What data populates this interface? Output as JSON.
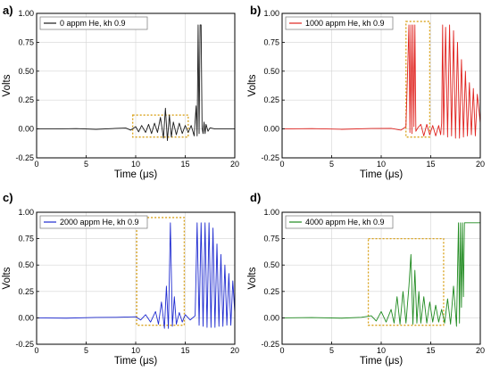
{
  "chart_data": [
    {
      "type": "line",
      "panel_label": "a)",
      "legend": "0 appm He, kh 0.9",
      "color": "#1a1a1a",
      "xlabel": "Time (μs)",
      "ylabel": "Volts",
      "xlim": [
        0,
        20
      ],
      "ylim": [
        -0.25,
        1.0
      ],
      "xticks": [
        "0",
        "5",
        "10",
        "15",
        "20"
      ],
      "yticks": [
        "-0.25",
        "0.00",
        "0.25",
        "0.50",
        "0.75",
        "1.00"
      ],
      "grid": true,
      "legend_position": "top-left",
      "highlight_box": {
        "x": [
          9.7,
          15.3
        ],
        "y": [
          -0.07,
          0.12
        ]
      },
      "x": [
        0,
        2,
        4,
        6,
        8,
        9,
        9.5,
        10,
        10.3,
        10.6,
        11,
        11.3,
        11.6,
        11.9,
        12.2,
        12.5,
        12.8,
        13.0,
        13.2,
        13.4,
        13.6,
        13.8,
        14.1,
        14.4,
        14.7,
        15.0,
        15.3,
        15.6,
        15.9,
        16.1,
        16.2,
        16.3,
        16.4,
        16.5,
        16.6,
        16.7,
        16.8,
        16.9,
        17.0,
        17.1,
        17.3,
        17.5,
        18,
        19,
        20
      ],
      "y": [
        0,
        0,
        0.003,
        -0.003,
        0.005,
        0.008,
        -0.01,
        0.02,
        -0.025,
        0.03,
        -0.03,
        0.04,
        -0.04,
        0.05,
        -0.03,
        0.1,
        -0.08,
        0.18,
        -0.1,
        0.12,
        -0.07,
        0.06,
        -0.05,
        0.05,
        -0.04,
        0.03,
        -0.03,
        0.03,
        -0.06,
        0.2,
        -0.06,
        0.9,
        -0.04,
        0.9,
        0.9,
        0.01,
        -0.04,
        0.06,
        -0.04,
        0.04,
        -0.02,
        0.01,
        0,
        0,
        0
      ]
    },
    {
      "type": "line",
      "panel_label": "b)",
      "legend": "1000 appm He, kh 0.9",
      "color": "#e0231f",
      "xlabel": "Time (μs)",
      "ylabel": "Volts",
      "xlim": [
        0,
        20
      ],
      "ylim": [
        -0.25,
        1.0
      ],
      "xticks": [
        "0",
        "5",
        "10",
        "15",
        "20"
      ],
      "yticks": [
        "-0.25",
        "0.00",
        "0.25",
        "0.50",
        "0.75",
        "1.00"
      ],
      "grid": true,
      "legend_position": "top-left",
      "highlight_box": {
        "x": [
          12.5,
          14.9
        ],
        "y": [
          -0.07,
          0.93
        ]
      },
      "x": [
        0,
        3,
        6,
        9,
        11,
        12,
        12.5,
        12.8,
        12.9,
        13.0,
        13.1,
        13.2,
        13.3,
        13.4,
        13.5,
        13.7,
        14.0,
        14.3,
        14.6,
        14.9,
        15.2,
        15.5,
        15.8,
        16.0,
        16.1,
        16.2,
        16.3,
        16.5,
        16.7,
        16.9,
        17.1,
        17.3,
        17.5,
        17.7,
        17.9,
        18.1,
        18.3,
        18.5,
        18.7,
        18.9,
        19.1,
        19.3,
        19.5,
        19.7,
        20
      ],
      "y": [
        0,
        0.003,
        -0.003,
        0.004,
        0.005,
        -0.01,
        0.02,
        0.9,
        -0.03,
        0.9,
        -0.04,
        0.9,
        0.02,
        0.9,
        -0.02,
        0.01,
        0.04,
        -0.06,
        0.04,
        -0.05,
        0.03,
        -0.06,
        0.03,
        -0.05,
        0.05,
        0.9,
        -0.05,
        0.88,
        -0.07,
        0.9,
        -0.06,
        0.85,
        -0.08,
        0.75,
        -0.08,
        0.6,
        -0.07,
        0.5,
        -0.06,
        0.4,
        -0.05,
        0.35,
        -0.06,
        0.3,
        0.05
      ]
    },
    {
      "type": "line",
      "panel_label": "c)",
      "legend": "2000 appm He, kh 0.9",
      "color": "#1f2bd0",
      "xlabel": "Time (μs)",
      "ylabel": "Volts",
      "xlim": [
        0,
        20
      ],
      "ylim": [
        -0.25,
        1.0
      ],
      "xticks": [
        "0",
        "5",
        "10",
        "15",
        "20"
      ],
      "yticks": [
        "-0.25",
        "0.00",
        "0.25",
        "0.50",
        "0.75",
        "1.00"
      ],
      "grid": true,
      "legend_position": "top-left",
      "highlight_box": {
        "x": [
          10.1,
          14.9
        ],
        "y": [
          -0.07,
          0.95
        ]
      },
      "x": [
        0,
        3,
        6,
        8,
        10,
        10.5,
        11,
        11.5,
        12,
        12.3,
        12.6,
        12.9,
        13.1,
        13.3,
        13.5,
        13.7,
        13.9,
        14.1,
        14.4,
        14.7,
        15,
        15.5,
        16,
        16.2,
        16.4,
        16.6,
        16.8,
        17.0,
        17.2,
        17.4,
        17.6,
        17.8,
        18.0,
        18.2,
        18.4,
        18.6,
        18.8,
        19.0,
        19.2,
        19.4,
        19.6,
        19.8,
        20
      ],
      "y": [
        0,
        -0.003,
        0.004,
        0.005,
        0.01,
        -0.02,
        0.03,
        -0.04,
        0.06,
        -0.06,
        0.15,
        -0.1,
        0.3,
        -0.1,
        0.9,
        -0.08,
        0.2,
        -0.06,
        0.05,
        -0.04,
        0.03,
        -0.02,
        0.02,
        0.9,
        -0.07,
        0.9,
        -0.08,
        0.9,
        -0.09,
        0.9,
        -0.09,
        0.85,
        -0.09,
        0.7,
        -0.08,
        0.6,
        -0.08,
        0.5,
        -0.07,
        0.42,
        -0.07,
        0.35,
        0.05
      ]
    },
    {
      "type": "line",
      "panel_label": "d)",
      "legend": "4000 appm He, kh 0.9",
      "color": "#1f8a1f",
      "xlabel": "Time (μs)",
      "ylabel": "Volts",
      "xlim": [
        0,
        20
      ],
      "ylim": [
        -0.25,
        1.0
      ],
      "xticks": [
        "0",
        "5",
        "10",
        "15",
        "20"
      ],
      "yticks": [
        "-0.25",
        "0.00",
        "0.25",
        "0.50",
        "0.75",
        "1.00"
      ],
      "grid": true,
      "legend_position": "top-left",
      "highlight_box": {
        "x": [
          8.7,
          16.3
        ],
        "y": [
          -0.07,
          0.75
        ]
      },
      "x": [
        0,
        3,
        6,
        8,
        9,
        9.5,
        10,
        10.5,
        11,
        11.3,
        11.6,
        11.9,
        12.2,
        12.5,
        12.8,
        13.0,
        13.2,
        13.4,
        13.6,
        13.8,
        14.0,
        14.3,
        14.6,
        14.9,
        15.2,
        15.5,
        15.8,
        16.1,
        16.4,
        16.7,
        17.0,
        17.3,
        17.6,
        17.8,
        17.9,
        18.0,
        18.1,
        18.2,
        18.3,
        18.4,
        18.6,
        19,
        20
      ],
      "y": [
        0,
        0.003,
        -0.003,
        0.005,
        0.02,
        -0.03,
        0.06,
        -0.04,
        0.08,
        -0.05,
        0.2,
        -0.06,
        0.25,
        -0.05,
        0.3,
        0.6,
        -0.06,
        0.45,
        -0.05,
        0.25,
        -0.05,
        0.2,
        -0.05,
        0.15,
        -0.04,
        0.12,
        -0.04,
        0.08,
        -0.05,
        0.18,
        -0.06,
        0.3,
        -0.08,
        0.9,
        -0.05,
        0.9,
        0.1,
        0.9,
        0.2,
        0.9,
        0.9,
        0.9,
        0.9
      ]
    }
  ]
}
